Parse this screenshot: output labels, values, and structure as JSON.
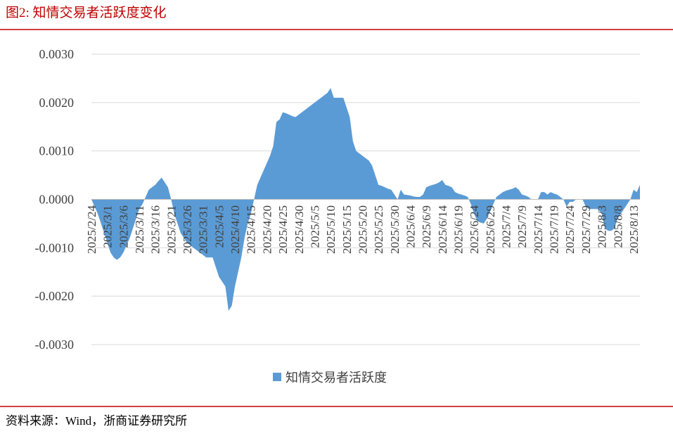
{
  "header": {
    "title": "图2:   知情交易者活跃度变化"
  },
  "footer": {
    "source": "资料来源：Wind，浙商证券研究所"
  },
  "chart_data": {
    "type": "area",
    "categories": [
      "2025/2/24",
      null,
      null,
      null,
      null,
      "2025/3/1",
      null,
      null,
      null,
      null,
      "2025/3/6",
      null,
      null,
      null,
      null,
      "2025/3/11",
      null,
      null,
      null,
      null,
      "2025/3/16",
      null,
      null,
      null,
      null,
      "2025/3/21",
      null,
      null,
      null,
      null,
      "2025/3/26",
      null,
      null,
      null,
      null,
      "2025/3/31",
      null,
      null,
      null,
      null,
      "2025/4/5",
      null,
      null,
      null,
      null,
      "2025/4/10",
      null,
      null,
      null,
      null,
      "2025/4/15",
      null,
      null,
      null,
      null,
      "2025/4/20",
      null,
      null,
      null,
      null,
      "2025/4/25",
      null,
      null,
      null,
      null,
      "2025/4/30",
      null,
      null,
      null,
      null,
      "2025/5/5",
      null,
      null,
      null,
      null,
      "2025/5/10",
      null,
      null,
      null,
      null,
      "2025/5/15",
      null,
      null,
      null,
      null,
      "2025/5/20",
      null,
      null,
      null,
      null,
      "2025/5/25",
      null,
      null,
      null,
      null,
      "2025/5/30",
      null,
      null,
      null,
      null,
      "2025/6/4",
      null,
      null,
      null,
      null,
      "2025/6/9",
      null,
      null,
      null,
      null,
      "2025/6/14",
      null,
      null,
      null,
      null,
      "2025/6/19",
      null,
      null,
      null,
      null,
      "2025/6/24",
      null,
      null,
      null,
      null,
      "2025/6/29",
      null,
      null,
      null,
      null,
      "2025/7/4",
      null,
      null,
      null,
      null,
      "2025/7/9",
      null,
      null,
      null,
      null,
      "2025/7/14",
      null,
      null,
      null,
      null,
      "2025/7/19",
      null,
      null,
      null,
      null,
      "2025/7/24",
      null,
      null,
      null,
      null,
      "2025/7/29",
      null,
      null,
      null,
      null,
      "2025/8/3",
      null,
      null,
      null,
      null,
      "2025/8/8",
      null,
      null,
      null,
      null,
      "2025/8/13",
      null,
      null
    ],
    "series": [
      {
        "name": "知情交易者活跃度",
        "color": "#5b9bd5",
        "values": [
          0,
          -0.00015,
          -0.0003,
          -0.0005,
          -0.0007,
          -0.0009,
          -0.0011,
          -0.0012,
          -0.00125,
          -0.0012,
          -0.0011,
          -0.00095,
          -0.0008,
          -0.0006,
          -0.0004,
          -0.0002,
          -0.0001,
          5e-05,
          0.0002,
          0.00025,
          0.0003,
          0.00038,
          0.00045,
          0.00035,
          0.00025,
          0,
          -0.0003,
          -0.0005,
          -0.0007,
          -0.0008,
          -0.0009,
          -0.00095,
          -0.001,
          -0.00105,
          -0.0011,
          -0.00115,
          -0.0012,
          -0.0012,
          -0.0012,
          -0.0014,
          -0.0016,
          -0.0017,
          -0.0018,
          -0.0023,
          -0.0022,
          -0.0018,
          -0.0015,
          -0.0012,
          -0.0008,
          -0.0005,
          -0.0003,
          0,
          0.0003,
          0.00045,
          0.0006,
          0.00075,
          0.0009,
          0.0011,
          0.0016,
          0.00165,
          0.0018,
          0.00178,
          0.00175,
          0.00172,
          0.0017,
          0.00175,
          0.0018,
          0.00185,
          0.0019,
          0.00195,
          0.002,
          0.00205,
          0.0021,
          0.00215,
          0.0022,
          0.0023,
          0.0021,
          0.0021,
          0.0021,
          0.0021,
          0.0019,
          0.0017,
          0.0012,
          0.001,
          0.00095,
          0.0009,
          0.00085,
          0.0008,
          0.0007,
          0.0005,
          0.0003,
          0.00028,
          0.00025,
          0.00022,
          0.0002,
          0.0001,
          0,
          0.0002,
          0.0001,
          9e-05,
          8e-05,
          6e-05,
          5e-05,
          5e-05,
          0.0001,
          0.00025,
          0.00028,
          0.0003,
          0.00032,
          0.00035,
          0.0004,
          0.0003,
          0.00028,
          0.00025,
          0.00015,
          0.00012,
          0.0001,
          8e-05,
          5e-05,
          -0.0001,
          -0.0003,
          -0.00045,
          -0.00048,
          -0.0005,
          -0.0004,
          -0.00025,
          -0.0001,
          5e-05,
          0.0001,
          0.00015,
          0.00018,
          0.0002,
          0.00022,
          0.00025,
          0.0002,
          0.0001,
          8e-05,
          5e-05,
          0,
          0,
          0,
          0.00015,
          0.00015,
          0.0001,
          0.00015,
          0.00012,
          0.0001,
          5e-05,
          0,
          -0.00015,
          -5e-05,
          -5e-05,
          0,
          0,
          0,
          -0.00015,
          -0.0002,
          -0.0002,
          -0.0002,
          -0.0002,
          -0.0003,
          -0.0006,
          -0.00065,
          -0.00065,
          -0.0006,
          -0.0004,
          -0.0003,
          -0.0002,
          -0.0001,
          0,
          0.0002,
          0.00015,
          0.0003
        ]
      }
    ],
    "ylim": [
      -0.003,
      0.003
    ],
    "yticks": [
      {
        "value": -0.003,
        "label": "-0.0030"
      },
      {
        "value": -0.002,
        "label": "-0.0020"
      },
      {
        "value": -0.001,
        "label": "-0.0010"
      },
      {
        "value": 0,
        "label": "0.0000"
      },
      {
        "value": 0.001,
        "label": "0.0010"
      },
      {
        "value": 0.002,
        "label": "0.0020"
      },
      {
        "value": 0.003,
        "label": "0.0030"
      }
    ],
    "grid": true,
    "legend": "bottom"
  }
}
